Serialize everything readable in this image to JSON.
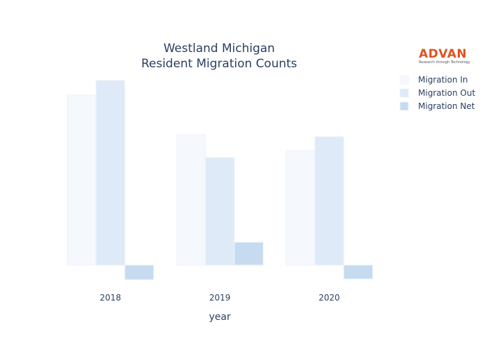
{
  "chart_data": {
    "type": "bar",
    "title_lines": [
      "Westland Michigan",
      "Resident Migration Counts"
    ],
    "xlabel": "year",
    "ylabel": "",
    "categories": [
      "2018",
      "2019",
      "2020"
    ],
    "series": [
      {
        "name": "Migration In",
        "values": [
          245,
          188,
          165
        ],
        "color": "#f5f9fe"
      },
      {
        "name": "Migration Out",
        "values": [
          266,
          155,
          185
        ],
        "color": "#deeaf7"
      },
      {
        "name": "Migration Net",
        "values": [
          -21,
          33,
          -20
        ],
        "color": "#c6dbef"
      }
    ],
    "ylim": [
      -30,
      280
    ],
    "grid": false,
    "y_ticks_visible": false,
    "legend_position": "top-right"
  },
  "logo": {
    "name": "ADVAN",
    "tagline": "Research through Technology",
    "color": "#e0531f"
  }
}
